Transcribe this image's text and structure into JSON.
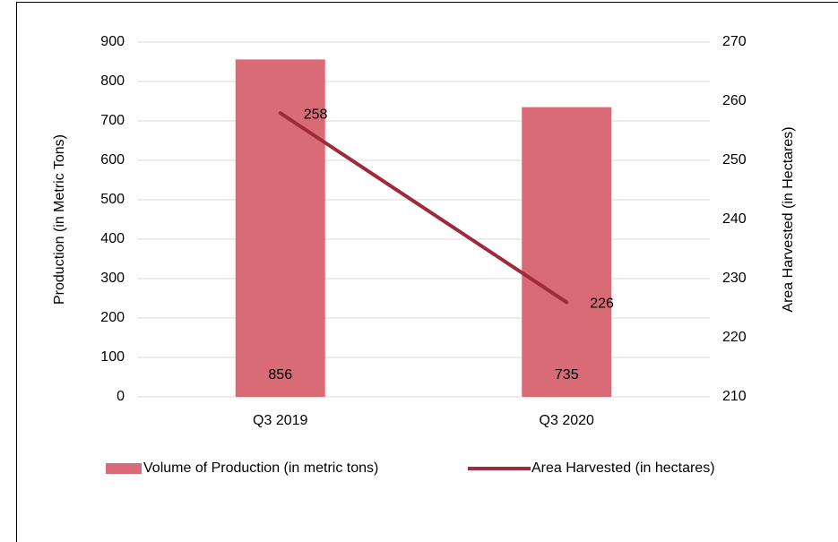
{
  "chart_data": {
    "type": "bar",
    "categories": [
      "Q3 2019",
      "Q3 2020"
    ],
    "series": [
      {
        "name": "Volume of Production (in metric tons)",
        "type": "bar",
        "color": "#d96b77",
        "values": [
          856,
          735
        ]
      },
      {
        "name": "Area Harvested (in hectares)",
        "type": "line",
        "color": "#9e2a3a",
        "axis": "y2",
        "values": [
          258,
          226
        ]
      }
    ],
    "y_label": "Production (in Metric Tons)",
    "y2_label": "Area Harvested (in Hectares)",
    "ylim": [
      0,
      900
    ],
    "yticks": [
      0,
      100,
      200,
      300,
      400,
      500,
      600,
      700,
      800,
      900
    ],
    "y2lim": [
      210,
      270
    ],
    "y2ticks": [
      210,
      220,
      230,
      240,
      250,
      260,
      270
    ],
    "grid": true,
    "legend": "bottom"
  }
}
